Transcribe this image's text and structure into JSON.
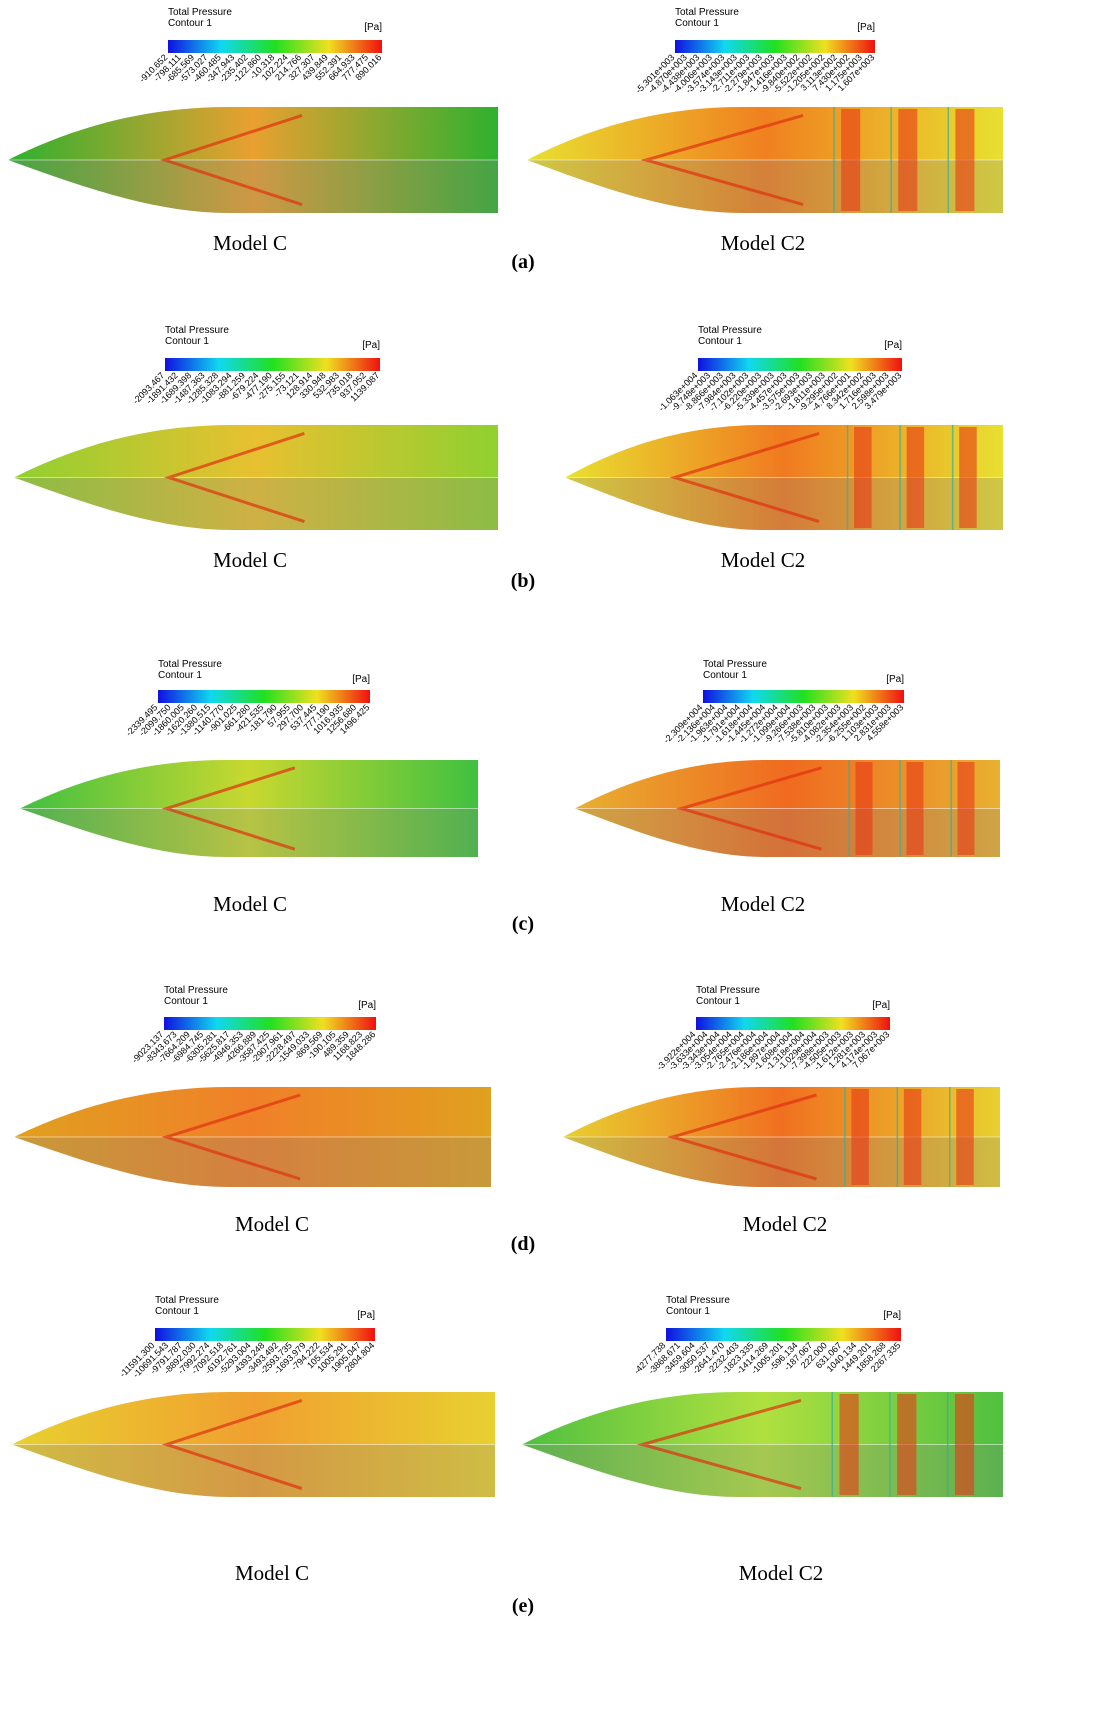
{
  "panels": [
    {
      "label": "(a)",
      "left": {
        "legend_title": "Total Pressure",
        "legend_subtitle": "Contour 1",
        "unit": "[Pa]",
        "caption": "Model C",
        "ticks": [
          "-910.652",
          "-798.111",
          "-685.569",
          "-573.027",
          "-460.485",
          "-347.943",
          "-235.402",
          "-122.860",
          "-10.318",
          "102.224",
          "214.766",
          "327.307",
          "439.849",
          "552.391",
          "664.933",
          "777.475",
          "890.016"
        ]
      },
      "right": {
        "legend_title": "Total Pressure",
        "legend_subtitle": "Contour 1",
        "unit": "[Pa]",
        "caption": "Model C2",
        "ticks": [
          "-5.301e+003",
          "-4.870e+003",
          "-4.438e+003",
          "-4.006e+003",
          "-3.574e+003",
          "-3.143e+003",
          "-2.711e+003",
          "-2.279e+003",
          "-1.847e+003",
          "-1.416e+003",
          "-9.840e+002",
          "-5.522e+002",
          "-1.205e+002",
          "3.113e+002",
          "7.430e+002",
          "1.175e+003",
          "1.607e+003"
        ]
      }
    },
    {
      "label": "(b)",
      "left": {
        "legend_title": "Total Pressure",
        "legend_subtitle": "Contour 1",
        "unit": "[Pa]",
        "caption": "Model C",
        "ticks": [
          "-2093.467",
          "-1891.432",
          "-1689.398",
          "-1487.363",
          "-1285.328",
          "-1083.294",
          "-881.259",
          "-679.224",
          "-477.190",
          "-275.155",
          "-73.121",
          "128.914",
          "330.948",
          "532.983",
          "735.018",
          "937.052",
          "1139.087"
        ]
      },
      "right": {
        "legend_title": "Total Pressure",
        "legend_subtitle": "Contour 1",
        "unit": "[Pa]",
        "caption": "Model C2",
        "ticks": [
          "-1.063e+004",
          "-9.748e+003",
          "-8.866e+003",
          "-7.984e+003",
          "-7.102e+003",
          "-6.220e+003",
          "-5.339e+003",
          "-4.457e+003",
          "-3.575e+003",
          "-2.693e+003",
          "-1.811e+003",
          "-9.295e+002",
          "-4.766e+001",
          "8.342e+002",
          "1.716e+003",
          "2.598e+003",
          "3.479e+003"
        ]
      }
    },
    {
      "label": "(c)",
      "left": {
        "legend_title": "Total Pressure",
        "legend_subtitle": "Contour 1",
        "unit": "[Pa]",
        "caption": "Model C",
        "ticks": [
          "-2339.495",
          "-2099.750",
          "-1860.005",
          "-1620.260",
          "-1380.515",
          "-1140.770",
          "-901.025",
          "-661.280",
          "-421.535",
          "-181.790",
          "57.955",
          "297.700",
          "537.445",
          "777.190",
          "1016.935",
          "1256.680",
          "1496.425"
        ]
      },
      "right": {
        "legend_title": "Total Pressure",
        "legend_subtitle": "Contour 1",
        "unit": "[Pa]",
        "caption": "Model C2",
        "ticks": [
          "-2.309e+004",
          "-2.136e+004",
          "-1.963e+004",
          "-1.791e+004",
          "-1.618e+004",
          "-1.445e+004",
          "-1.272e+004",
          "-1.099e+004",
          "-9.266e+003",
          "-7.538e+003",
          "-5.810e+003",
          "-4.082e+003",
          "-2.354e+003",
          "-6.255e+002",
          "1.103e+003",
          "2.831e+003",
          "4.558e+003"
        ]
      }
    },
    {
      "label": "(d)",
      "left": {
        "legend_title": "Total Pressure",
        "legend_subtitle": "Contour 1",
        "unit": "[Pa]",
        "caption": "Model C",
        "ticks": [
          "-9023.137",
          "-8343.673",
          "-7664.209",
          "-6984.745",
          "-6305.281",
          "-5625.817",
          "-4946.353",
          "-4266.889",
          "-3587.425",
          "-2907.961",
          "-2228.497",
          "-1549.033",
          "-869.569",
          "-190.105",
          "489.359",
          "1168.823",
          "1848.286"
        ]
      },
      "right": {
        "legend_title": "Total Pressure",
        "legend_subtitle": "Contour 1",
        "unit": "[Pa]",
        "caption": "Model C2",
        "ticks": [
          "-3.922e+004",
          "-3.633e+004",
          "-3.343e+004",
          "-3.054e+004",
          "-2.765e+004",
          "-2.476e+004",
          "-2.186e+004",
          "-1.897e+004",
          "-1.608e+004",
          "-1.318e+004",
          "-1.029e+004",
          "-7.398e+003",
          "-4.505e+003",
          "-1.612e+003",
          "1.281e+003",
          "4.174e+003",
          "7.067e+003"
        ]
      }
    },
    {
      "label": "(e)",
      "left": {
        "legend_title": "Total Pressure",
        "legend_subtitle": "Contour 1",
        "unit": "[Pa]",
        "caption": "Model C",
        "ticks": [
          "-11591.300",
          "-10691.543",
          "-9791.787",
          "-8892.030",
          "-7992.274",
          "-7092.518",
          "-6192.761",
          "-5293.004",
          "-4393.248",
          "-3493.492",
          "-2593.735",
          "-1693.979",
          "-794.222",
          "105.534",
          "1005.291",
          "1905.047",
          "2804.804"
        ]
      },
      "right": {
        "legend_title": "Total Pressure",
        "legend_subtitle": "Contour 1",
        "unit": "[Pa]",
        "caption": "Model C2",
        "ticks": [
          "-4277.738",
          "-3868.671",
          "-3459.604",
          "-3050.537",
          "-2641.470",
          "-2232.403",
          "-1823.335",
          "-1414.269",
          "-1005.201",
          "-596.134",
          "-187.067",
          "222.000",
          "631.067",
          "1040.134",
          "1449.201",
          "1858.268",
          "2267.335"
        ]
      }
    }
  ]
}
